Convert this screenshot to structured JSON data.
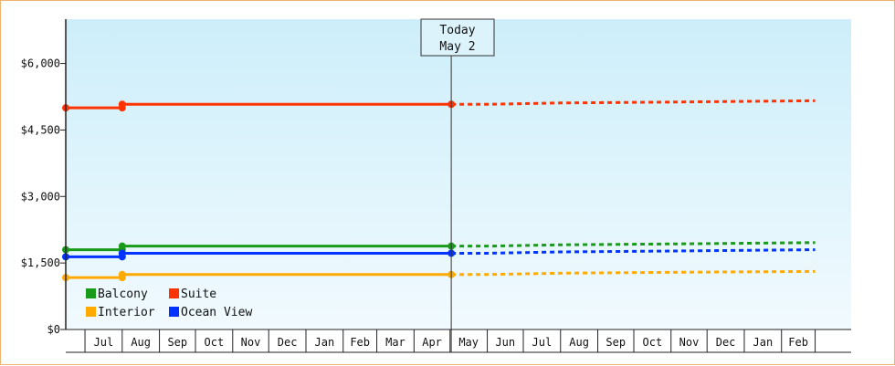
{
  "chart_data": {
    "type": "line",
    "title": "",
    "xlabel": "",
    "ylabel": "",
    "ylim": [
      0,
      7000
    ],
    "y_ticks": [
      0,
      1500,
      3000,
      4500,
      6000
    ],
    "y_tick_labels": [
      "$0",
      "$1,500",
      "$3,000",
      "$4,500",
      "$6,000"
    ],
    "x_range": [
      "2024-06-15",
      "2025-03-31"
    ],
    "x_tick_labels": [
      "Jul",
      "Aug",
      "Sep",
      "Oct",
      "Nov",
      "Dec",
      "Jan",
      "Feb",
      "Mar",
      "Apr",
      "May",
      "Jun",
      "Jul",
      "Aug",
      "Sep",
      "Oct",
      "Nov",
      "Dec",
      "Jan",
      "Feb"
    ],
    "today": {
      "line1": "Today",
      "line2": "May 2",
      "date": "2025-05-02"
    },
    "grid": false,
    "legend_position": "bottom-left",
    "series": [
      {
        "name": "Balcony",
        "color": "#1a9a1a",
        "actual": [
          [
            "2024-06-15",
            1800
          ],
          [
            "2024-08-01",
            1800
          ],
          [
            "2024-08-01",
            1880
          ],
          [
            "2025-05-02",
            1880
          ]
        ],
        "projected": [
          [
            "2025-05-02",
            1880
          ],
          [
            "2025-06-01",
            1880
          ],
          [
            "2025-08-01",
            1910
          ],
          [
            "2025-11-01",
            1930
          ],
          [
            "2026-03-01",
            1960
          ]
        ]
      },
      {
        "name": "Suite",
        "color": "#ff3300",
        "actual": [
          [
            "2024-06-15",
            5000
          ],
          [
            "2024-08-01",
            5000
          ],
          [
            "2024-08-01",
            5080
          ],
          [
            "2025-05-02",
            5080
          ]
        ],
        "projected": [
          [
            "2025-05-02",
            5080
          ],
          [
            "2025-06-01",
            5080
          ],
          [
            "2025-08-01",
            5110
          ],
          [
            "2025-11-01",
            5130
          ],
          [
            "2026-03-01",
            5160
          ]
        ]
      },
      {
        "name": "Interior",
        "color": "#ffaa00",
        "actual": [
          [
            "2024-06-15",
            1170
          ],
          [
            "2024-08-01",
            1170
          ],
          [
            "2024-08-01",
            1240
          ],
          [
            "2025-05-02",
            1240
          ]
        ],
        "projected": [
          [
            "2025-05-02",
            1240
          ],
          [
            "2025-06-01",
            1240
          ],
          [
            "2025-08-01",
            1270
          ],
          [
            "2025-11-01",
            1290
          ],
          [
            "2026-03-01",
            1310
          ]
        ]
      },
      {
        "name": "Ocean View",
        "color": "#0033ff",
        "actual": [
          [
            "2024-06-15",
            1640
          ],
          [
            "2024-08-01",
            1640
          ],
          [
            "2024-08-01",
            1720
          ],
          [
            "2025-05-02",
            1720
          ]
        ],
        "projected": [
          [
            "2025-05-02",
            1720
          ],
          [
            "2025-06-01",
            1720
          ],
          [
            "2025-08-01",
            1750
          ],
          [
            "2025-11-01",
            1770
          ],
          [
            "2026-03-01",
            1800
          ]
        ]
      }
    ],
    "legend": [
      {
        "name": "Balcony",
        "color": "#1a9a1a"
      },
      {
        "name": "Suite",
        "color": "#ff3300"
      },
      {
        "name": "Interior",
        "color": "#ffaa00"
      },
      {
        "name": "Ocean View",
        "color": "#0033ff"
      }
    ]
  }
}
